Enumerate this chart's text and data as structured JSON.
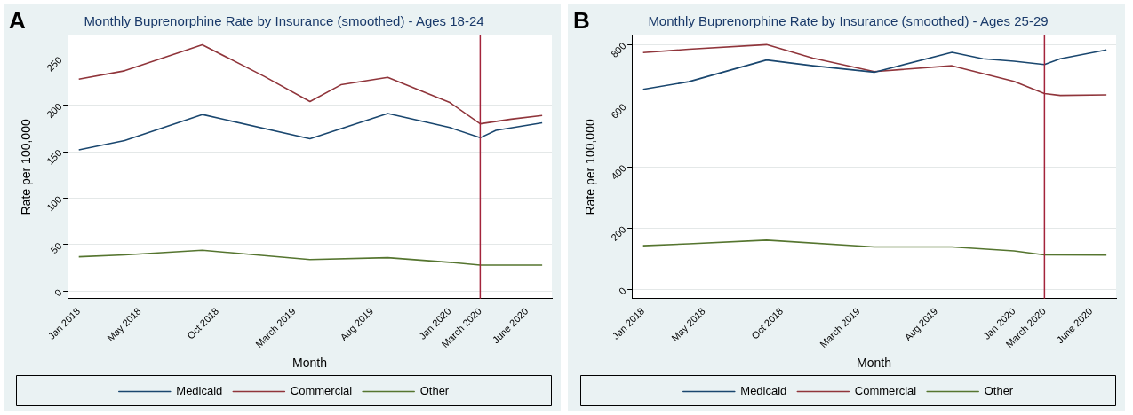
{
  "chart_data": [
    {
      "type": "line",
      "title": "Monthly Buprenorphine Rate by Insurance (smoothed) - Ages 18-24",
      "xlabel": "Month",
      "ylabel": "Rate per 100,000",
      "annotations": [
        "A"
      ],
      "xlim": [
        "2017-12-10",
        "2020-07-20"
      ],
      "xticks": [
        {
          "value": "2018-01",
          "label": "Jan 2018"
        },
        {
          "value": "2018-05",
          "label": "May 2018"
        },
        {
          "value": "2018-10",
          "label": "Oct 2018"
        },
        {
          "value": "2019-03",
          "label": "March 2019"
        },
        {
          "value": "2019-08",
          "label": "Aug 2019"
        },
        {
          "value": "2020-01",
          "label": "Jan 2020"
        },
        {
          "value": "2020-03",
          "label": "March 2020"
        },
        {
          "value": "2020-06",
          "label": "June 2020"
        }
      ],
      "ylim": [
        -8,
        275
      ],
      "yticks": [
        0,
        50,
        100,
        150,
        200,
        250
      ],
      "grid": "y",
      "legend": "bottom",
      "marker": "none",
      "line_style": "solid",
      "ref_lines": [
        {
          "axis": "x",
          "value": "2020-03",
          "color": "#a3243b"
        }
      ],
      "series": [
        {
          "name": "Medicaid",
          "color": "#1a476f",
          "x": [
            "2018-01",
            "2018-04",
            "2018-09",
            "2019-04",
            "2019-09",
            "2020-01",
            "2020-03",
            "2020-04",
            "2020-07"
          ],
          "values": [
            152,
            162,
            190,
            164,
            191,
            176,
            165,
            173,
            181
          ]
        },
        {
          "name": "Commercial",
          "color": "#90353b",
          "x": [
            "2018-01",
            "2018-04",
            "2018-09",
            "2019-01",
            "2019-04",
            "2019-06",
            "2019-09",
            "2020-01",
            "2020-03",
            "2020-05",
            "2020-07"
          ],
          "values": [
            228,
            237,
            265,
            231,
            204,
            222,
            230,
            203,
            180,
            185,
            189
          ]
        },
        {
          "name": "Other",
          "color": "#55752f",
          "x": [
            "2018-01",
            "2018-04",
            "2018-09",
            "2019-04",
            "2019-09",
            "2020-01",
            "2020-03",
            "2020-07"
          ],
          "values": [
            37,
            39,
            44,
            34,
            36,
            31,
            28,
            28
          ]
        }
      ]
    },
    {
      "type": "line",
      "title": "Monthly Buprenorphine Rate by Insurance (smoothed) - Ages 25-29",
      "xlabel": "Month",
      "ylabel": "Rate per 100,000",
      "annotations": [
        "B"
      ],
      "xlim": [
        "2017-12-10",
        "2020-07-20"
      ],
      "xticks": [
        {
          "value": "2018-01",
          "label": "Jan 2018"
        },
        {
          "value": "2018-05",
          "label": "May 2018"
        },
        {
          "value": "2018-10",
          "label": "Oct 2018"
        },
        {
          "value": "2019-03",
          "label": "March 2019"
        },
        {
          "value": "2019-08",
          "label": "Aug 2019"
        },
        {
          "value": "2020-01",
          "label": "Jan 2020"
        },
        {
          "value": "2020-03",
          "label": "March 2020"
        },
        {
          "value": "2020-06",
          "label": "June 2020"
        }
      ],
      "ylim": [
        -30,
        830
      ],
      "yticks": [
        0,
        200,
        400,
        600,
        800
      ],
      "grid": "y",
      "legend": "bottom",
      "marker": "none",
      "line_style": "solid",
      "ref_lines": [
        {
          "axis": "x",
          "value": "2020-03",
          "color": "#a3243b"
        }
      ],
      "series": [
        {
          "name": "Medicaid",
          "color": "#1a476f",
          "x": [
            "2018-01",
            "2018-04",
            "2018-09",
            "2018-12",
            "2019-04",
            "2019-09",
            "2019-11",
            "2020-01",
            "2020-03",
            "2020-04",
            "2020-07"
          ],
          "values": [
            654,
            679,
            750,
            731,
            710,
            775,
            754,
            746,
            735,
            754,
            783
          ]
        },
        {
          "name": "Commercial",
          "color": "#90353b",
          "x": [
            "2018-01",
            "2018-04",
            "2018-09",
            "2018-12",
            "2019-04",
            "2019-09",
            "2020-01",
            "2020-03",
            "2020-04",
            "2020-07"
          ],
          "values": [
            774,
            785,
            800,
            756,
            712,
            731,
            680,
            640,
            634,
            636
          ]
        },
        {
          "name": "Other",
          "color": "#55752f",
          "x": [
            "2018-01",
            "2018-04",
            "2018-09",
            "2019-04",
            "2019-09",
            "2020-01",
            "2020-03",
            "2020-07"
          ],
          "values": [
            143,
            149,
            161,
            139,
            139,
            126,
            113,
            112
          ]
        }
      ]
    }
  ]
}
